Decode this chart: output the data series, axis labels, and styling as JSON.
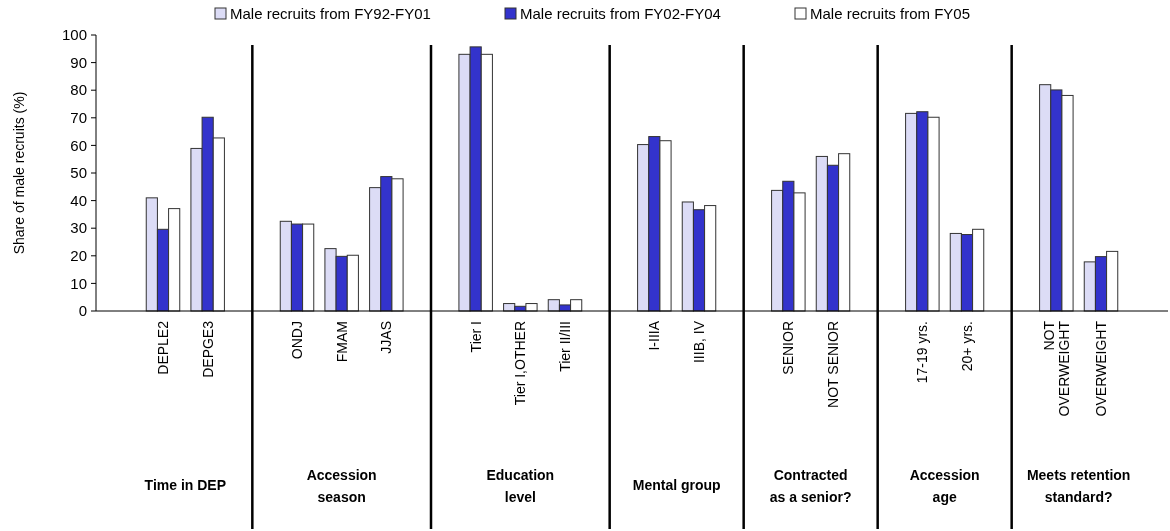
{
  "chart_data": {
    "type": "bar",
    "ylabel": "Share of male recruits (%)",
    "categories": [
      null,
      "DEPLE2",
      "DEPGE3",
      null,
      "ONDJ",
      "FMAM",
      "JJAS",
      null,
      "Tier I",
      "Tier I,OTHER",
      "Tier II/III",
      null,
      "I-IIIA",
      "IIIB, IV",
      null,
      "SENIOR",
      "NOT SENIOR",
      null,
      "17-19 yrs.",
      "20+ yrs.",
      null,
      "NOT OVERWEIGHT",
      "OVERWEIGHT",
      null
    ],
    "series": [
      {
        "name": "Male recruits from FY92-FY01",
        "color": "#dcdcf6",
        "values": [
          null,
          41,
          58.9,
          null,
          32.5,
          22.6,
          44.7,
          null,
          93,
          2.7,
          4.1,
          null,
          60.3,
          39.5,
          null,
          43.7,
          56,
          null,
          71.6,
          28.1,
          null,
          82,
          17.8,
          null
        ]
      },
      {
        "name": "Male recruits from FY02-FY04",
        "color": "#3333cc",
        "values": [
          null,
          29.6,
          70.2,
          null,
          31.5,
          19.8,
          48.7,
          null,
          95.7,
          1.7,
          2.2,
          null,
          63.2,
          36.7,
          null,
          47,
          52.8,
          null,
          72.2,
          27.7,
          null,
          80.1,
          19.7,
          null
        ]
      },
      {
        "name": "Male recruits from FY05",
        "color": "#ffffff",
        "values": [
          null,
          37.1,
          62.7,
          null,
          31.5,
          20.2,
          47.9,
          null,
          93,
          2.7,
          4.1,
          null,
          61.7,
          38.2,
          null,
          42.8,
          57,
          null,
          70.2,
          29.6,
          null,
          78.1,
          21.6,
          null
        ]
      }
    ],
    "grid": "x",
    "ylim": [
      0,
      100
    ],
    "yticks": [
      0,
      10,
      20,
      30,
      40,
      50,
      60,
      70,
      80,
      90,
      100
    ],
    "legend": "top",
    "annotations": [
      "Time in DEP",
      "Accession season",
      "Education level",
      "Mental group",
      "Contracted as a senior?",
      "Accession age",
      "Meets retention standard?"
    ]
  }
}
